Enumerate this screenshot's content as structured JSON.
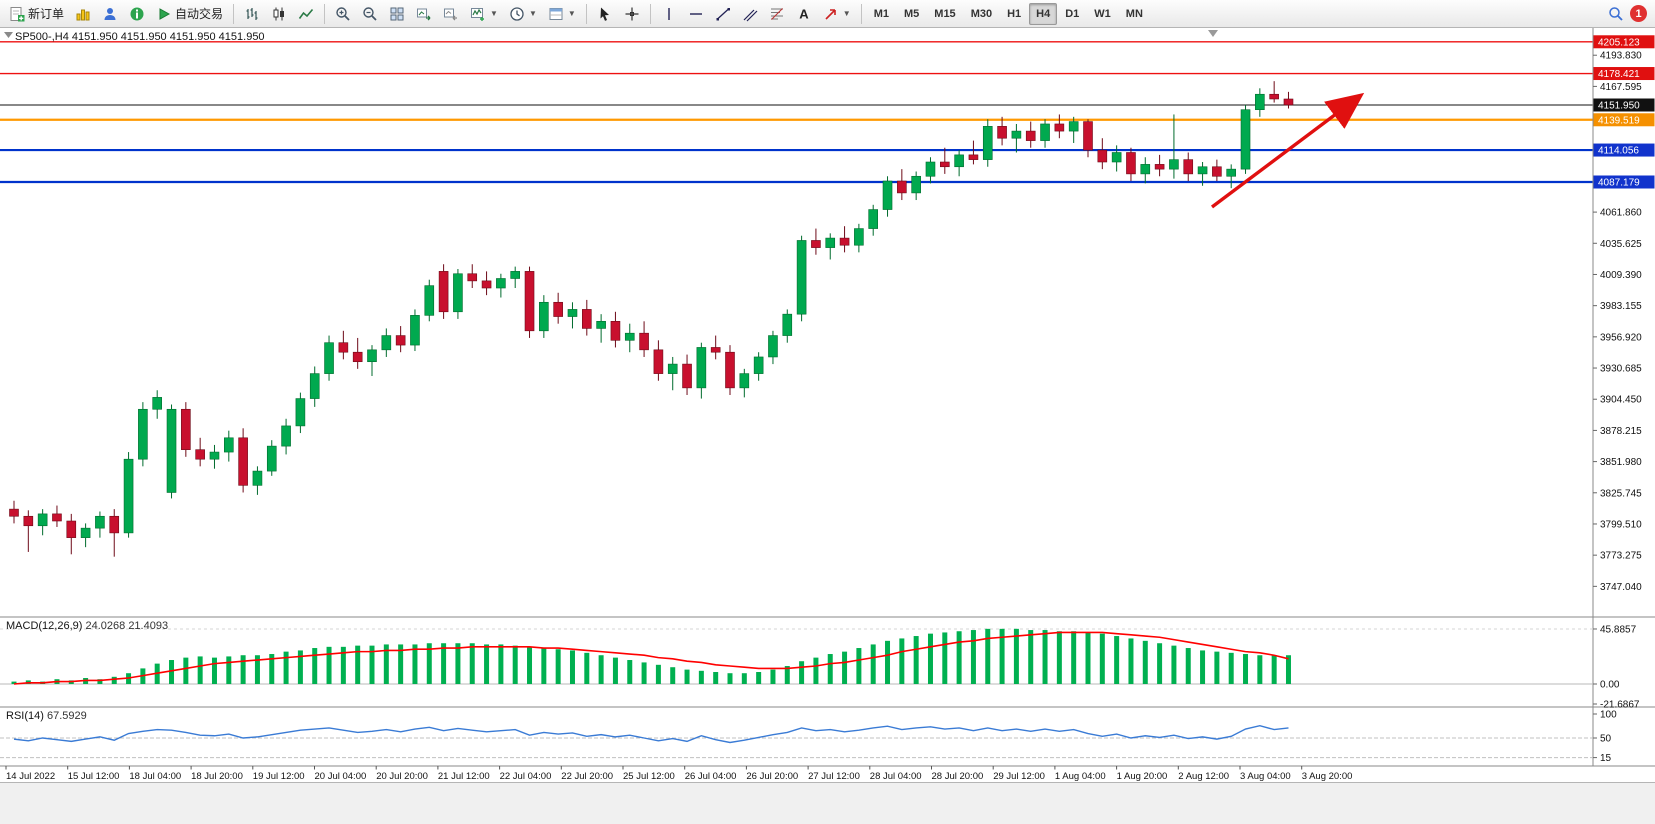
{
  "toolbar": {
    "new_order_label": "新订单",
    "autotrading_label": "自动交易",
    "timeframes": [
      {
        "label": "M1",
        "active": false
      },
      {
        "label": "M5",
        "active": false
      },
      {
        "label": "M15",
        "active": false
      },
      {
        "label": "M30",
        "active": false
      },
      {
        "label": "H1",
        "active": false
      },
      {
        "label": "H4",
        "active": true
      },
      {
        "label": "D1",
        "active": false
      },
      {
        "label": "W1",
        "active": false
      },
      {
        "label": "MN",
        "active": false
      }
    ],
    "notification_count": "1"
  },
  "chart": {
    "title": "SP500-,H4  4151.950 4151.950 4151.950 4151.950",
    "hlines": [
      {
        "price": 4205.123,
        "label": "4205.123",
        "color": "#ee1111",
        "badge": "#e01010",
        "width": 1.4
      },
      {
        "price": 4178.421,
        "label": "4178.421",
        "color": "#ee1111",
        "badge": "#e01010",
        "width": 1.4
      },
      {
        "price": 4151.95,
        "label": "4151.950",
        "color": "#111111",
        "badge": "#111111",
        "width": 1
      },
      {
        "price": 4139.519,
        "label": "4139.519",
        "color": "#ff9900",
        "badge": "#f59000",
        "width": 2.2
      },
      {
        "price": 4114.056,
        "label": "4114.056",
        "color": "#0033cc",
        "badge": "#1133cc",
        "width": 2.2
      },
      {
        "price": 4087.179,
        "label": "4087.179",
        "color": "#0033cc",
        "badge": "#1133cc",
        "width": 2.2
      }
    ],
    "scale_labels": [
      "4193.830",
      "4167.595",
      "4061.860",
      "4035.625",
      "4009.390",
      "3983.155",
      "3956.920",
      "3930.685",
      "3904.450",
      "3878.215",
      "3851.980",
      "3825.745",
      "3799.510",
      "3773.275",
      "3747.040"
    ],
    "time_labels": [
      "14 Jul 2022",
      "15 Jul 12:00",
      "18 Jul 04:00",
      "18 Jul 20:00",
      "19 Jul 12:00",
      "20 Jul 04:00",
      "20 Jul 20:00",
      "21 Jul 12:00",
      "22 Jul 04:00",
      "22 Jul 20:00",
      "25 Jul 12:00",
      "26 Jul 04:00",
      "26 Jul 20:00",
      "27 Jul 12:00",
      "28 Jul 04:00",
      "28 Jul 20:00",
      "29 Jul 12:00",
      "1 Aug 04:00",
      "1 Aug 20:00",
      "2 Aug 12:00",
      "3 Aug 04:00",
      "3 Aug 20:00"
    ]
  },
  "macd": {
    "label": "MACD(12,26,9)",
    "value_main": "24.0268",
    "value_signal": "21.4093",
    "scale": [
      "45.8857",
      "0.00",
      "-21.6867"
    ]
  },
  "rsi": {
    "label": "RSI(14)",
    "value": "67.5929",
    "scale": [
      "100",
      "50",
      "15"
    ]
  },
  "chart_data": {
    "type": "candlestick",
    "symbol": "SP500-",
    "timeframe": "H4",
    "last_price": 4151.95,
    "colors": {
      "bull": "#00a94f",
      "bull_edge": "#006b2d",
      "bear": "#c8102e",
      "bear_edge": "#6e0a18",
      "macd_hist": "#00b050",
      "macd_signal": "#ff0000",
      "rsi_line": "#3a7bd5",
      "arrow": "#e01010"
    },
    "candles": [
      [
        3812,
        3819,
        3800,
        3806
      ],
      [
        3806,
        3811,
        3776,
        3798
      ],
      [
        3798,
        3812,
        3790,
        3808
      ],
      [
        3808,
        3815,
        3797,
        3802
      ],
      [
        3802,
        3808,
        3774,
        3788
      ],
      [
        3788,
        3800,
        3780,
        3796
      ],
      [
        3796,
        3810,
        3788,
        3806
      ],
      [
        3806,
        3812,
        3772,
        3792
      ],
      [
        3792,
        3860,
        3788,
        3854
      ],
      [
        3854,
        3902,
        3848,
        3896
      ],
      [
        3896,
        3912,
        3888,
        3906
      ],
      [
        3826,
        3900,
        3821,
        3896
      ],
      [
        3896,
        3902,
        3856,
        3862
      ],
      [
        3862,
        3872,
        3848,
        3854
      ],
      [
        3854,
        3866,
        3846,
        3860
      ],
      [
        3860,
        3878,
        3852,
        3872
      ],
      [
        3872,
        3880,
        3826,
        3832
      ],
      [
        3832,
        3848,
        3824,
        3844
      ],
      [
        3844,
        3870,
        3840,
        3865
      ],
      [
        3865,
        3888,
        3858,
        3882
      ],
      [
        3882,
        3910,
        3876,
        3905
      ],
      [
        3905,
        3932,
        3898,
        3926
      ],
      [
        3926,
        3958,
        3920,
        3952
      ],
      [
        3952,
        3962,
        3938,
        3944
      ],
      [
        3944,
        3956,
        3930,
        3936
      ],
      [
        3936,
        3950,
        3924,
        3946
      ],
      [
        3946,
        3964,
        3940,
        3958
      ],
      [
        3958,
        3966,
        3944,
        3950
      ],
      [
        3950,
        3980,
        3945,
        3975
      ],
      [
        3975,
        4005,
        3970,
        4000
      ],
      [
        4012,
        4018,
        3972,
        3978
      ],
      [
        3978,
        4014,
        3972,
        4010
      ],
      [
        4010,
        4018,
        3998,
        4004
      ],
      [
        4004,
        4012,
        3992,
        3998
      ],
      [
        3998,
        4010,
        3990,
        4006
      ],
      [
        4006,
        4016,
        3998,
        4012
      ],
      [
        4012,
        4016,
        3956,
        3962
      ],
      [
        3962,
        3992,
        3956,
        3986
      ],
      [
        3986,
        3994,
        3968,
        3974
      ],
      [
        3974,
        3986,
        3964,
        3980
      ],
      [
        3980,
        3988,
        3958,
        3964
      ],
      [
        3964,
        3976,
        3952,
        3970
      ],
      [
        3970,
        3978,
        3948,
        3954
      ],
      [
        3954,
        3968,
        3944,
        3960
      ],
      [
        3960,
        3970,
        3940,
        3946
      ],
      [
        3946,
        3954,
        3920,
        3926
      ],
      [
        3926,
        3940,
        3912,
        3934
      ],
      [
        3934,
        3942,
        3908,
        3914
      ],
      [
        3914,
        3952,
        3905,
        3948
      ],
      [
        3948,
        3958,
        3938,
        3944
      ],
      [
        3944,
        3950,
        3908,
        3914
      ],
      [
        3914,
        3930,
        3906,
        3926
      ],
      [
        3926,
        3944,
        3920,
        3940
      ],
      [
        3940,
        3962,
        3934,
        3958
      ],
      [
        3958,
        3980,
        3952,
        3976
      ],
      [
        3976,
        4042,
        3970,
        4038
      ],
      [
        4038,
        4048,
        4026,
        4032
      ],
      [
        4032,
        4044,
        4022,
        4040
      ],
      [
        4040,
        4050,
        4028,
        4034
      ],
      [
        4034,
        4052,
        4028,
        4048
      ],
      [
        4048,
        4068,
        4042,
        4064
      ],
      [
        4064,
        4092,
        4058,
        4088
      ],
      [
        4088,
        4098,
        4072,
        4078
      ],
      [
        4078,
        4096,
        4072,
        4092
      ],
      [
        4092,
        4108,
        4086,
        4104
      ],
      [
        4104,
        4116,
        4094,
        4100
      ],
      [
        4100,
        4114,
        4092,
        4110
      ],
      [
        4110,
        4122,
        4102,
        4106
      ],
      [
        4106,
        4140,
        4100,
        4134
      ],
      [
        4134,
        4142,
        4118,
        4124
      ],
      [
        4124,
        4136,
        4112,
        4130
      ],
      [
        4130,
        4138,
        4116,
        4122
      ],
      [
        4122,
        4140,
        4116,
        4136
      ],
      [
        4136,
        4144,
        4124,
        4130
      ],
      [
        4130,
        4142,
        4120,
        4138
      ],
      [
        4138,
        4140,
        4108,
        4114
      ],
      [
        4114,
        4124,
        4098,
        4104
      ],
      [
        4104,
        4118,
        4096,
        4112
      ],
      [
        4112,
        4116,
        4088,
        4094
      ],
      [
        4094,
        4108,
        4086,
        4102
      ],
      [
        4102,
        4110,
        4092,
        4098
      ],
      [
        4098,
        4144,
        4090,
        4106
      ],
      [
        4106,
        4112,
        4088,
        4094
      ],
      [
        4094,
        4104,
        4084,
        4100
      ],
      [
        4100,
        4106,
        4088,
        4092
      ],
      [
        4092,
        4102,
        4082,
        4098
      ],
      [
        4098,
        4152,
        4094,
        4148
      ],
      [
        4148,
        4166,
        4142,
        4161
      ],
      [
        4161,
        4172,
        4154,
        4157
      ],
      [
        4157,
        4163,
        4149,
        4152
      ]
    ],
    "macd_histogram": [
      2,
      3,
      2,
      4,
      3,
      5,
      4,
      6,
      9,
      13,
      17,
      20,
      22,
      23,
      22,
      23,
      24,
      24,
      25,
      27,
      28,
      30,
      31,
      31,
      32,
      32,
      33,
      33,
      33,
      34,
      34,
      34,
      34,
      33,
      33,
      32,
      31,
      30,
      29,
      28,
      26,
      24,
      22,
      20,
      18,
      16,
      14,
      12,
      11,
      10,
      9,
      9,
      10,
      12,
      15,
      19,
      22,
      25,
      27,
      30,
      33,
      36,
      38,
      40,
      42,
      43,
      44,
      45,
      46,
      46,
      46,
      45,
      45,
      44,
      44,
      43,
      42,
      40,
      38,
      36,
      34,
      32,
      30,
      28,
      27,
      26,
      25,
      24,
      24,
      24
    ],
    "macd_signal": [
      0,
      1,
      1,
      2,
      2,
      3,
      3,
      4,
      5,
      7,
      9,
      11,
      13,
      15,
      17,
      18,
      19,
      20,
      21,
      22,
      23,
      24,
      25,
      26,
      27,
      27,
      28,
      28,
      29,
      29,
      30,
      30,
      31,
      31,
      31,
      31,
      31,
      30,
      30,
      29,
      28,
      27,
      26,
      25,
      24,
      22,
      21,
      19,
      18,
      16,
      15,
      14,
      13,
      13,
      13,
      14,
      15,
      17,
      18,
      20,
      22,
      24,
      27,
      29,
      31,
      33,
      35,
      36,
      38,
      39,
      40,
      41,
      42,
      43,
      43,
      43,
      43,
      42,
      41,
      40,
      39,
      37,
      35,
      33,
      31,
      29,
      27,
      26,
      24,
      21
    ],
    "rsi": [
      48,
      45,
      50,
      47,
      44,
      48,
      52,
      46,
      58,
      62,
      65,
      64,
      60,
      55,
      54,
      57,
      50,
      52,
      56,
      60,
      64,
      66,
      68,
      64,
      60,
      62,
      65,
      61,
      66,
      69,
      63,
      67,
      64,
      61,
      63,
      65,
      55,
      60,
      57,
      59,
      53,
      56,
      52,
      55,
      50,
      45,
      49,
      44,
      54,
      47,
      42,
      46,
      51,
      56,
      60,
      68,
      63,
      65,
      61,
      64,
      68,
      71,
      65,
      68,
      70,
      66,
      68,
      63,
      68,
      63,
      66,
      62,
      66,
      62,
      65,
      58,
      53,
      57,
      50,
      54,
      51,
      55,
      49,
      52,
      48,
      53,
      66,
      72,
      65,
      68
    ],
    "annotation_arrow": {
      "from": [
        1212,
        179
      ],
      "to": [
        1356,
        71
      ]
    }
  }
}
